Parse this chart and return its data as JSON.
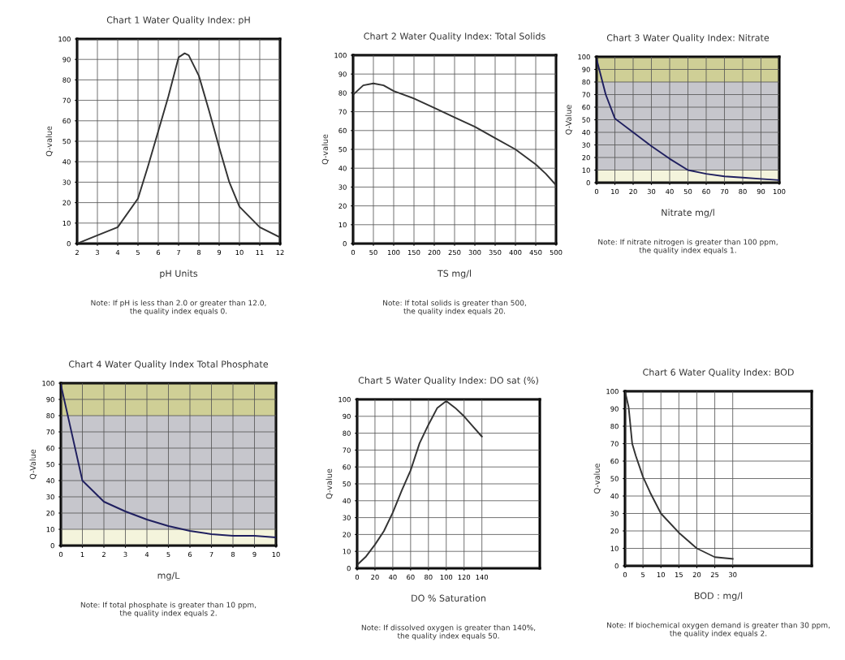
{
  "chart_data": [
    {
      "type": "line",
      "title": "Chart 1 Water Quality Index: pH",
      "xlabel": "pH Units",
      "ylabel": "Q-value",
      "x": [
        2,
        3,
        4,
        5,
        5.5,
        6,
        6.5,
        7,
        7.3,
        7.5,
        8,
        8.5,
        9,
        9.5,
        10,
        11,
        12
      ],
      "series": [
        {
          "color": "#333333",
          "values": [
            0,
            4,
            8,
            22,
            38,
            55,
            72,
            91,
            93,
            92,
            82,
            65,
            47,
            30,
            18,
            8,
            3
          ]
        }
      ],
      "xlim": [
        2,
        12
      ],
      "ylim": [
        0,
        100
      ],
      "xticks": [
        2,
        3,
        4,
        5,
        6,
        7,
        8,
        9,
        10,
        11,
        12
      ],
      "yticks": [
        0,
        10,
        20,
        30,
        40,
        50,
        60,
        70,
        80,
        90,
        100
      ],
      "grid": true,
      "annotations": [
        "Note: If pH is less than 2.0 or greater than 12.0,\nthe quality index equals 0."
      ]
    },
    {
      "type": "line",
      "title": "Chart 2 Water Quality Index: Total Solids",
      "xlabel": "TS mg/l",
      "ylabel": "Q-value",
      "x": [
        0,
        25,
        50,
        75,
        100,
        150,
        200,
        250,
        300,
        350,
        400,
        450,
        475,
        500
      ],
      "series": [
        {
          "color": "#333333",
          "values": [
            79,
            84,
            85,
            84,
            81,
            77,
            72,
            67,
            62,
            56,
            50,
            42,
            37,
            31
          ]
        }
      ],
      "xlim": [
        0,
        500
      ],
      "ylim": [
        0,
        100
      ],
      "xticks": [
        0,
        50,
        100,
        150,
        200,
        250,
        300,
        350,
        400,
        450,
        500
      ],
      "yticks": [
        0,
        10,
        20,
        30,
        40,
        50,
        60,
        70,
        80,
        90,
        100
      ],
      "grid": true,
      "annotations": [
        "Note: If total solids is greater than 500,\nthe quality index equals 20."
      ]
    },
    {
      "type": "line",
      "title": "Chart 3 Water Quality Index: Nitrate",
      "xlabel": "Nitrate mg/l",
      "ylabel": "Q-Value",
      "x": [
        0,
        5,
        10,
        20,
        30,
        40,
        50,
        60,
        70,
        80,
        90,
        100
      ],
      "series": [
        {
          "color": "#1f1f5f",
          "values": [
            98,
            70,
            51,
            40,
            29,
            19,
            10,
            7,
            5,
            4,
            3,
            2
          ]
        }
      ],
      "xlim": [
        0,
        100
      ],
      "ylim": [
        0,
        100
      ],
      "xticks": [
        0,
        10,
        20,
        30,
        40,
        50,
        60,
        70,
        80,
        90,
        100
      ],
      "yticks": [
        0,
        10,
        20,
        30,
        40,
        50,
        60,
        70,
        80,
        90,
        100
      ],
      "grid": true,
      "bands": [
        {
          "axis": "y",
          "from": 80,
          "to": 100,
          "color": "#cfcf96"
        },
        {
          "axis": "y",
          "from": 10,
          "to": 80,
          "color": "#c6c6cc"
        },
        {
          "axis": "y",
          "from": 0,
          "to": 10,
          "color": "#f4f4dc"
        }
      ],
      "annotations": [
        "Note: If nitrate nitrogen is greater than 100 ppm,\nthe quality index equals 1."
      ]
    },
    {
      "type": "line",
      "title": "Chart 4 Water Quality Index Total Phosphate",
      "xlabel": "mg/L",
      "ylabel": "Q-Value",
      "x": [
        0,
        1,
        2,
        3,
        4,
        5,
        6,
        7,
        8,
        9,
        10
      ],
      "series": [
        {
          "color": "#1f1f5f",
          "values": [
            99,
            40,
            27,
            21,
            16,
            12,
            9,
            7,
            6,
            6,
            5
          ]
        }
      ],
      "xlim": [
        0,
        10
      ],
      "ylim": [
        0,
        100
      ],
      "xticks": [
        0,
        1,
        2,
        3,
        4,
        5,
        6,
        7,
        8,
        9,
        10
      ],
      "yticks": [
        0,
        10,
        20,
        30,
        40,
        50,
        60,
        70,
        80,
        90,
        100
      ],
      "grid": true,
      "bands": [
        {
          "axis": "y",
          "from": 80,
          "to": 100,
          "color": "#cfcf96"
        },
        {
          "axis": "y",
          "from": 10,
          "to": 80,
          "color": "#c6c6cc"
        },
        {
          "axis": "y",
          "from": 0,
          "to": 10,
          "color": "#f4f4dc"
        }
      ],
      "annotations": [
        "Note: If total phosphate is greater than 10 ppm,\nthe quality index equals 2."
      ]
    },
    {
      "type": "line",
      "title": "Chart 5 Water Quality Index: DO sat (%)",
      "xlabel": "DO % Saturation",
      "ylabel": "Q-value",
      "x": [
        0,
        10,
        20,
        30,
        40,
        50,
        60,
        70,
        80,
        90,
        100,
        110,
        120,
        130,
        140
      ],
      "series": [
        {
          "color": "#333333",
          "values": [
            2,
            7,
            14,
            22,
            33,
            46,
            58,
            74,
            85,
            95,
            99,
            95,
            90,
            84,
            78
          ]
        }
      ],
      "xlim": [
        0,
        205
      ],
      "ylim": [
        0,
        100
      ],
      "xticks": [
        0,
        20,
        40,
        60,
        80,
        100,
        120,
        140
      ],
      "yticks": [
        0,
        10,
        20,
        30,
        40,
        50,
        60,
        70,
        80,
        90,
        100
      ],
      "grid": true,
      "annotations": [
        "Note: If dissolved oxygen is greater than 140%,\nthe quality index equals 50."
      ]
    },
    {
      "type": "line",
      "title": "Chart 6 Water Quality Index: BOD",
      "xlabel": "BOD : mg/l",
      "ylabel": "Q-value",
      "x": [
        0,
        1,
        2,
        3,
        5,
        7,
        10,
        15,
        20,
        25,
        30
      ],
      "series": [
        {
          "color": "#333333",
          "values": [
            100,
            91,
            70,
            63,
            51,
            42,
            30,
            19,
            10,
            5,
            4
          ]
        }
      ],
      "xlim": [
        0,
        52
      ],
      "ylim": [
        0,
        100
      ],
      "xticks": [
        0,
        5,
        10,
        15,
        20,
        25,
        30
      ],
      "yticks": [
        0,
        10,
        20,
        30,
        40,
        50,
        60,
        70,
        80,
        90,
        100
      ],
      "grid": true,
      "annotations": [
        "Note: If biochemical oxygen demand is greater than 30 ppm,\nthe quality index equals 2."
      ]
    }
  ]
}
